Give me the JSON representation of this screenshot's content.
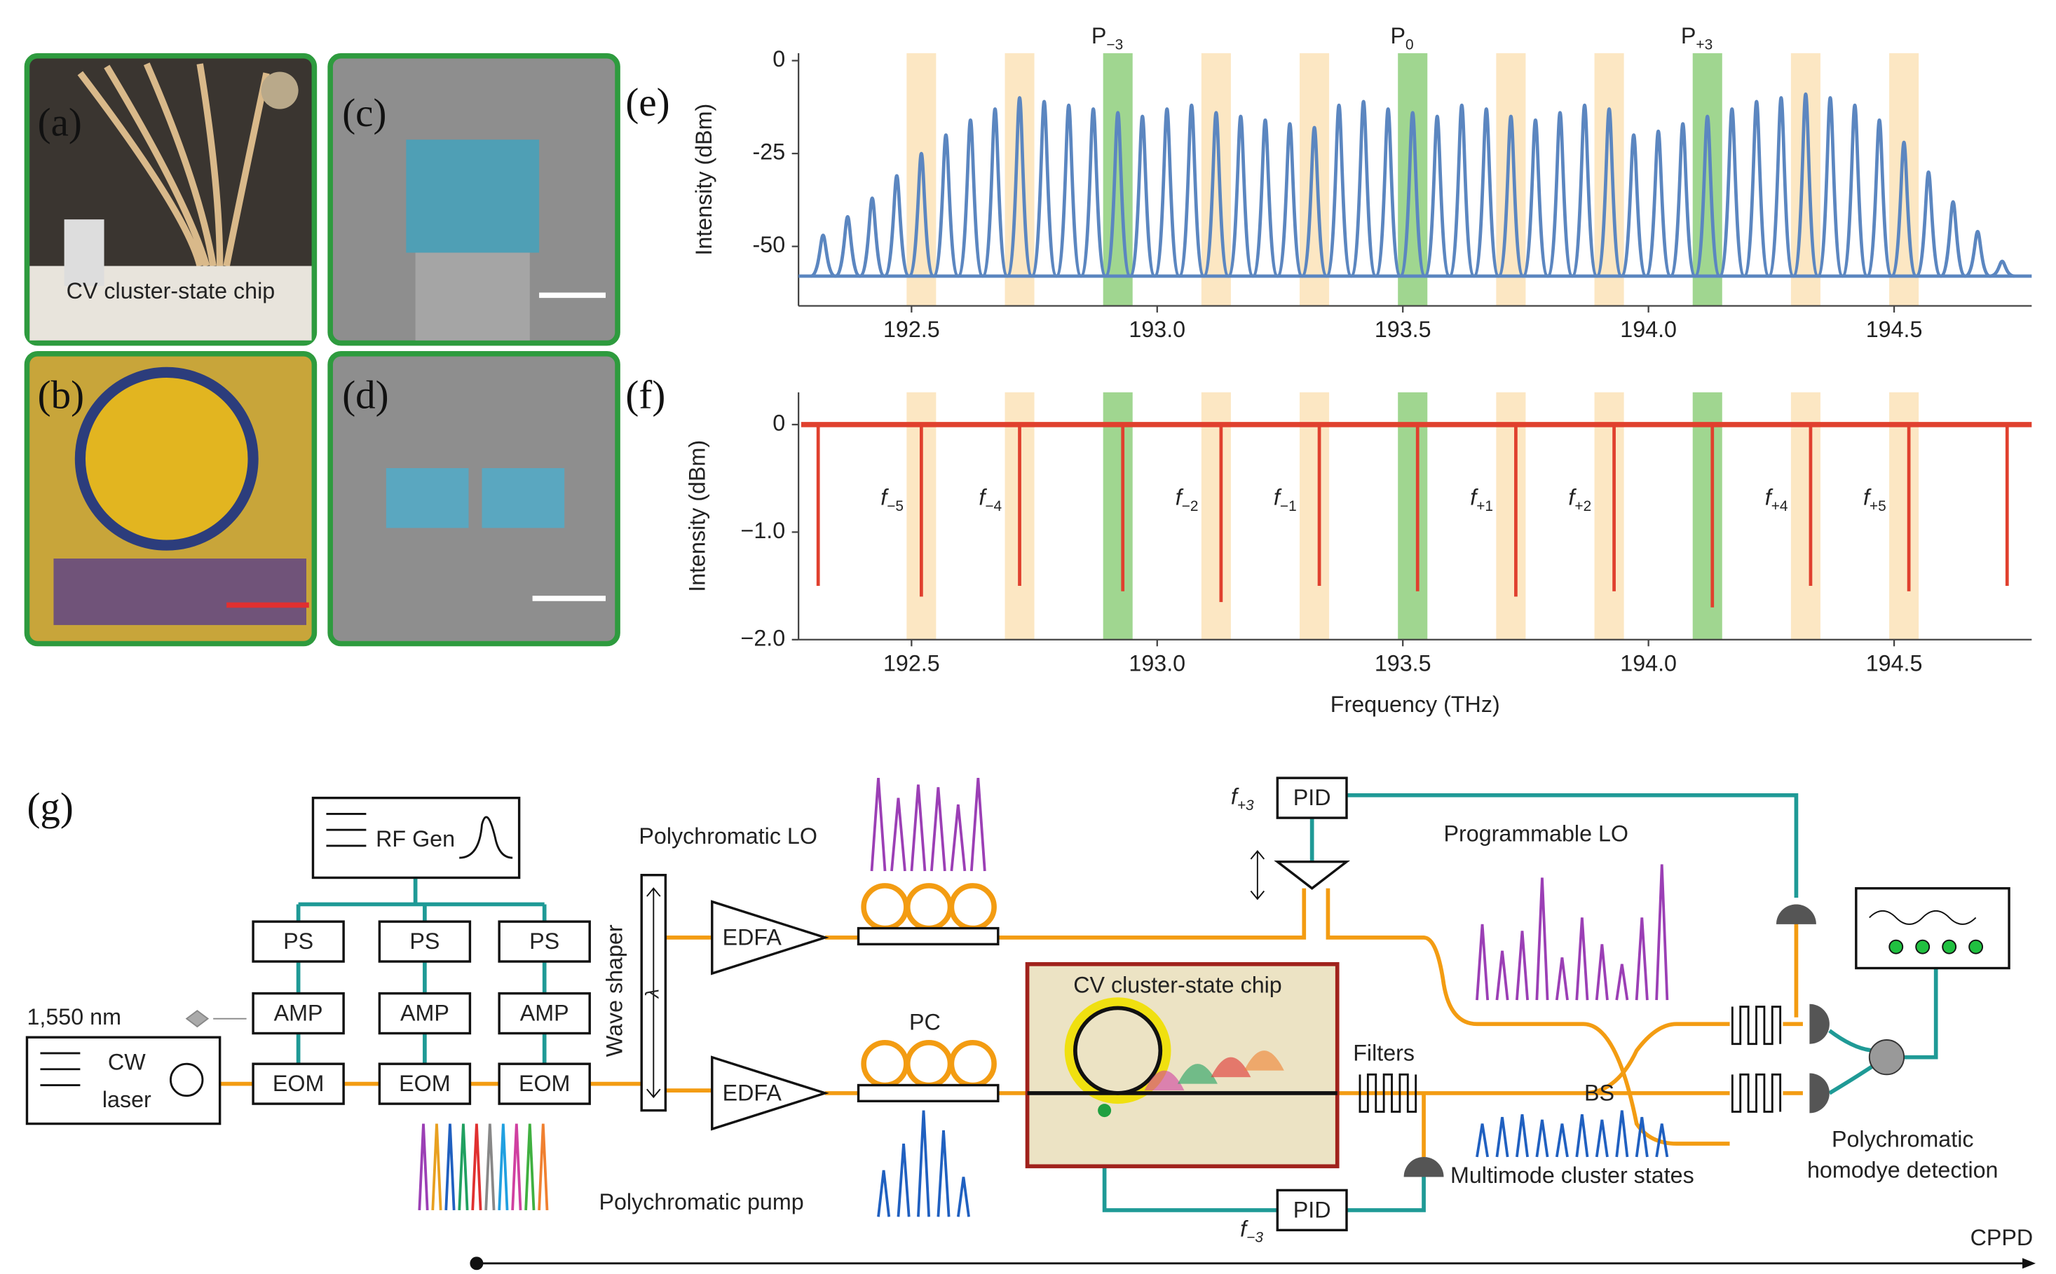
{
  "panels": {
    "a": "(a)",
    "b": "(b)",
    "c": "(c)",
    "d": "(d)",
    "e": "(e)",
    "f": "(f)",
    "g": "(g)"
  },
  "photo_caption": "CV cluster-state chip",
  "highlights": {
    "half_width": 0.03,
    "orange_color": "#fbe3b8",
    "green_color": "#8fcf7c",
    "orange": [
      192.52,
      192.72,
      193.12,
      193.32,
      193.72,
      193.92,
      194.32,
      194.52
    ],
    "green": [
      192.92,
      193.52,
      194.12
    ]
  },
  "chart_data": [
    {
      "type": "peaks",
      "color": "#5b86c0",
      "noise_floor": -58,
      "x": [
        192.32,
        192.37,
        192.42,
        192.47,
        192.52,
        192.57,
        192.62,
        192.67,
        192.72,
        192.77,
        192.82,
        192.87,
        192.92,
        192.97,
        193.02,
        193.07,
        193.12,
        193.17,
        193.22,
        193.27,
        193.32,
        193.37,
        193.42,
        193.47,
        193.52,
        193.57,
        193.62,
        193.67,
        193.72,
        193.77,
        193.82,
        193.87,
        193.92,
        193.97,
        194.02,
        194.07,
        194.12,
        194.17,
        194.22,
        194.27,
        194.32,
        194.37,
        194.42,
        194.47,
        194.52,
        194.57,
        194.62,
        194.67,
        194.72
      ],
      "values": [
        -47,
        -42,
        -37,
        -31,
        -25,
        -20,
        -16,
        -13,
        -10,
        -11,
        -12,
        -13,
        -14,
        -15,
        -13,
        -12,
        -14,
        -15,
        -16,
        -17,
        -18,
        -12,
        -11,
        -13,
        -14,
        -15,
        -12,
        -13,
        -15,
        -16,
        -14,
        -12,
        -13,
        -20,
        -19,
        -17,
        -15,
        -13,
        -11,
        -10,
        -9,
        -10,
        -12,
        -16,
        -22,
        -30,
        -38,
        -46,
        -54
      ],
      "xlim": [
        192.27,
        194.78
      ],
      "ylim": [
        -66,
        2
      ],
      "xticks": [
        192.5,
        {
          "value": 193,
          "label": "193.0"
        },
        193.5,
        {
          "value": 194,
          "label": "194.0"
        },
        194.5
      ],
      "yticks": [
        0,
        -25,
        -50
      ],
      "ylabel": "Intensity (dBm)",
      "annotations": [
        {
          "base": "P",
          "sub": "−3",
          "x": 192.92
        },
        {
          "base": "P",
          "sub": "0",
          "x": 193.52
        },
        {
          "base": "P",
          "sub": "+3",
          "x": 194.12
        }
      ]
    },
    {
      "type": "dips",
      "color": "#e0402e",
      "x": [
        192.31,
        192.52,
        192.72,
        192.93,
        193.13,
        193.33,
        193.53,
        193.73,
        193.93,
        194.13,
        194.33,
        194.53,
        194.73
      ],
      "values": [
        -1.5,
        -1.6,
        -1.5,
        -1.55,
        -1.65,
        -1.5,
        -1.55,
        -1.6,
        -1.55,
        -1.7,
        -1.5,
        -1.55,
        -1.5
      ],
      "xlim": [
        192.27,
        194.78
      ],
      "ylim": [
        -2,
        0.3
      ],
      "xticks": [
        192.5,
        {
          "value": 193,
          "label": "193.0"
        },
        193.5,
        {
          "value": 194,
          "label": "194.0"
        },
        194.5
      ],
      "yticks": [
        0,
        {
          "value": -1,
          "label": "−1.0"
        },
        {
          "value": -2,
          "label": "−2.0"
        }
      ],
      "ylabel": "Intensity (dBm)",
      "xlabel": "Frequency (THz)",
      "annotations": [
        {
          "base": "f",
          "sub": "−5",
          "x": 192.52
        },
        {
          "base": "f",
          "sub": "−4",
          "x": 192.72
        },
        {
          "base": "f",
          "sub": "−2",
          "x": 193.12
        },
        {
          "base": "f",
          "sub": "−1",
          "x": 193.32
        },
        {
          "base": "f",
          "sub": "+1",
          "x": 193.72
        },
        {
          "base": "f",
          "sub": "+2",
          "x": 193.92
        },
        {
          "base": "f",
          "sub": "+4",
          "x": 194.32
        },
        {
          "base": "f",
          "sub": "+5",
          "x": 194.52
        }
      ]
    }
  ],
  "diagram": {
    "rf_gen": "RF Gen",
    "ps": [
      "PS",
      "PS",
      "PS"
    ],
    "amp": [
      "AMP",
      "AMP",
      "AMP"
    ],
    "eom": [
      "EOM",
      "EOM",
      "EOM"
    ],
    "wavelength": "1,550 nm",
    "laser": [
      "CW",
      "laser"
    ],
    "wave_shaper": "Wave shaper",
    "lambda": "λ",
    "edfa": [
      "EDFA",
      "EDFA"
    ],
    "lo": "Polychromatic LO",
    "pc": "PC",
    "pump": "Polychromatic pump",
    "chip": "CV cluster-state chip",
    "filters": "Filters",
    "pid": [
      "PID",
      "PID"
    ],
    "f_plus3": {
      "base": "f",
      "sub": "+3"
    },
    "f_minus3": {
      "base": "f",
      "sub": "−3"
    },
    "prog_lo": "Programmable LO",
    "bs": "BS",
    "multimode": "Multimode cluster states",
    "homodyne": [
      "Polychromatic",
      "homodye detection"
    ],
    "cppd": "CPPD"
  }
}
